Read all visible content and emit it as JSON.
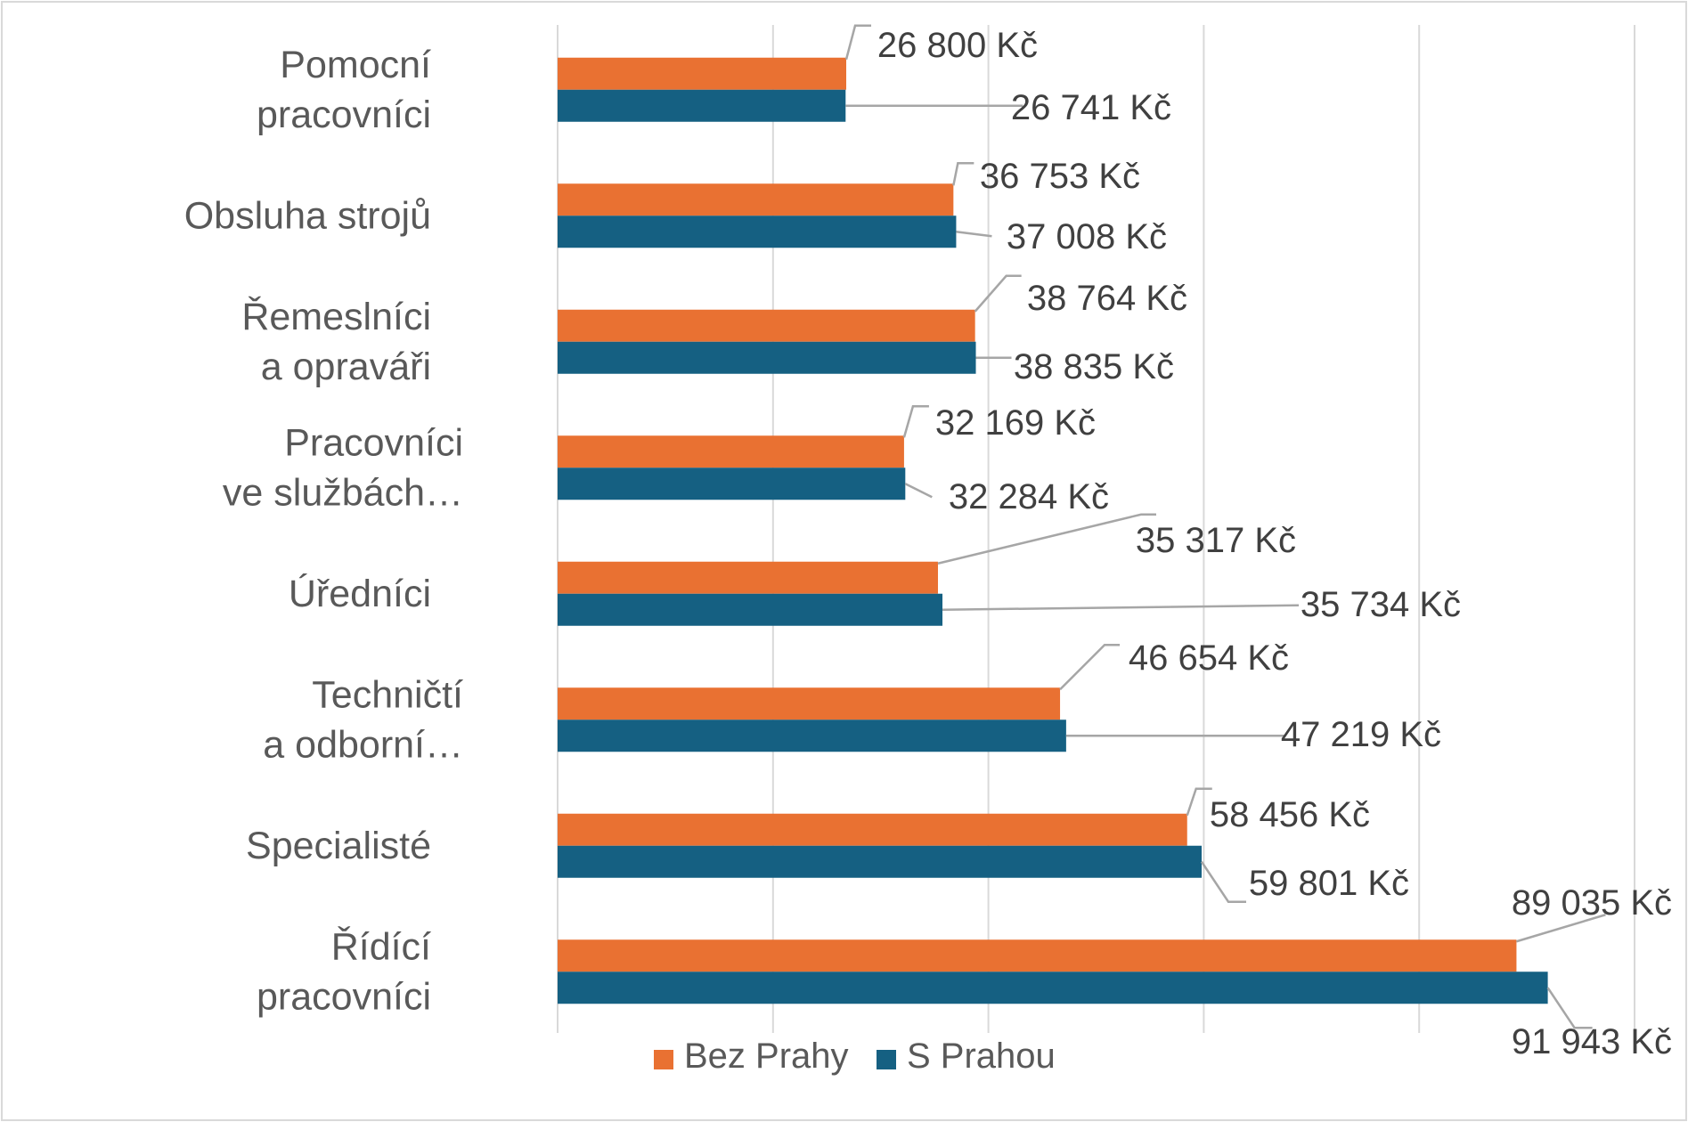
{
  "chart_data": {
    "type": "bar",
    "orientation": "horizontal",
    "title": "",
    "xlabel": "",
    "ylabel": "",
    "xlim": [
      0,
      100000
    ],
    "grid": true,
    "legend_position": "bottom",
    "categories": [
      [
        "Pomocní",
        "pracovníci"
      ],
      [
        "Obsluha strojů"
      ],
      [
        "Řemeslníci",
        "a opraváři"
      ],
      [
        "Pracovníci",
        "ve službách…"
      ],
      [
        "Úředníci"
      ],
      [
        "Techničtí",
        "a odborní…"
      ],
      [
        "Specialisté"
      ],
      [
        "Řídící",
        "pracovníci"
      ]
    ],
    "series": [
      {
        "name": "Bez Prahy",
        "color": "#E97132",
        "values": [
          26800,
          36753,
          38764,
          32169,
          35317,
          46654,
          58456,
          89035
        ],
        "labels": [
          "26 800 Kč",
          "36 753 Kč",
          "38 764 Kč",
          "32 169 Kč",
          "35 317 Kč",
          "46 654 Kč",
          "58 456 Kč",
          "89 035 Kč"
        ]
      },
      {
        "name": "S Prahou",
        "color": "#156082",
        "values": [
          26741,
          37008,
          38835,
          32284,
          35734,
          47219,
          59801,
          91943
        ],
        "labels": [
          "26 741 Kč",
          "37 008 Kč",
          "38 835 Kč",
          "32 284 Kč",
          "35 734 Kč",
          "47 219 Kč",
          "59 801 Kč",
          "91 943 Kč"
        ]
      }
    ]
  }
}
